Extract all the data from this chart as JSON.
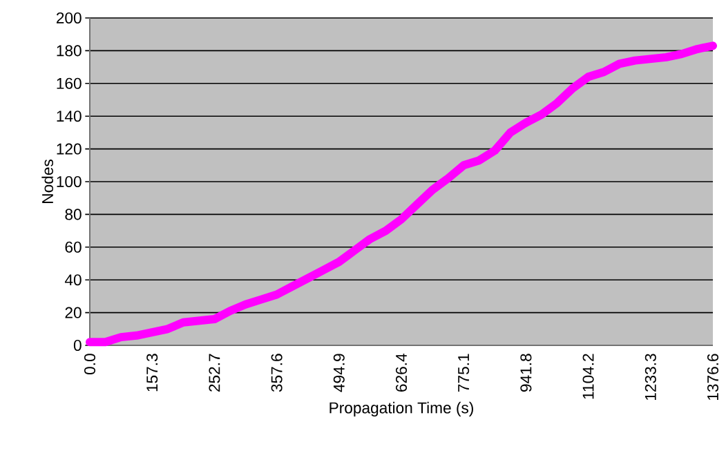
{
  "chart_data": {
    "type": "line",
    "xlabel": "Propagation Time (s)",
    "ylabel": "Nodes",
    "categories": [
      "0.0",
      null,
      null,
      null,
      "157.3",
      null,
      null,
      null,
      "252.7",
      null,
      null,
      null,
      "357.6",
      null,
      null,
      null,
      "494.9",
      null,
      null,
      null,
      "626.4",
      null,
      null,
      null,
      "775.1",
      null,
      null,
      null,
      "941.8",
      null,
      null,
      null,
      "1104.2",
      null,
      null,
      null,
      "1233.3",
      null,
      null,
      null,
      "1376.6"
    ],
    "values": [
      2,
      2,
      5,
      6,
      8,
      10,
      14,
      15,
      16,
      21,
      25,
      28,
      31,
      36,
      41,
      46,
      51,
      58,
      65,
      70,
      77,
      86,
      95,
      102,
      110,
      113,
      119,
      130,
      136,
      141,
      148,
      157,
      164,
      167,
      172,
      174,
      175,
      176,
      178,
      181,
      183
    ],
    "color": "#ff00ff",
    "ylim": [
      0,
      200
    ],
    "yticks": [
      0,
      20,
      40,
      60,
      80,
      100,
      120,
      140,
      160,
      180,
      200
    ],
    "grid": "y",
    "line_style": "solid"
  }
}
